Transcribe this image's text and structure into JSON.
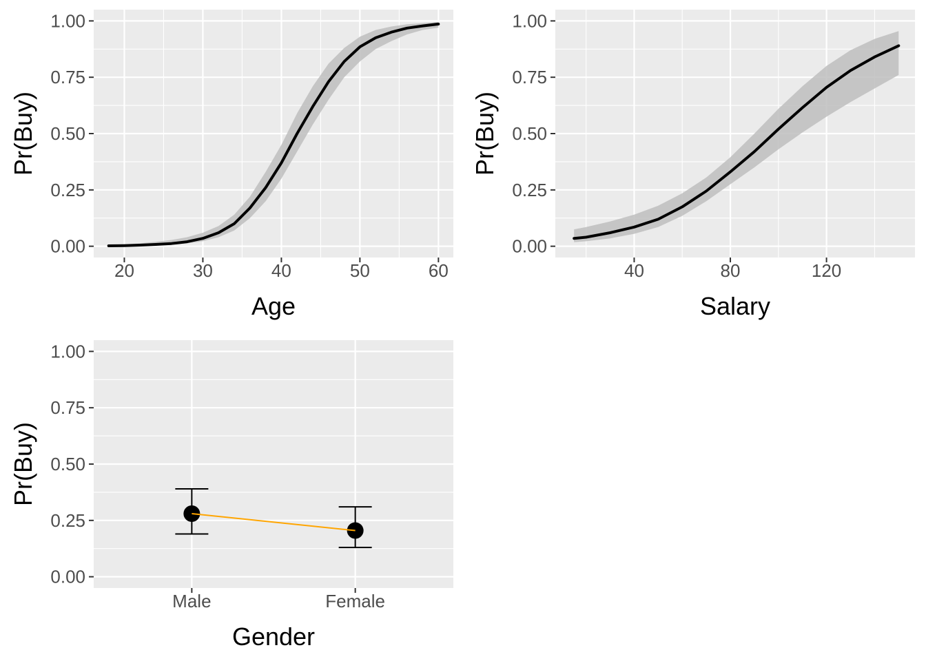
{
  "chart_data": [
    {
      "type": "line",
      "panel": "top-left",
      "xlabel": "Age",
      "ylabel": "Pr(Buy)",
      "xlim": [
        16.1,
        61.9
      ],
      "ylim": [
        -0.05,
        1.05
      ],
      "xticks": [
        20,
        30,
        40,
        50,
        60
      ],
      "xtick_labels": [
        "20",
        "30",
        "40",
        "50",
        "60"
      ],
      "yticks": [
        0,
        0.25,
        0.5,
        0.75,
        1
      ],
      "ytick_labels": [
        "0.00",
        "0.25",
        "0.50",
        "0.75",
        "1.00"
      ],
      "grid": true,
      "x": [
        18,
        20,
        22,
        24,
        26,
        28,
        30,
        32,
        34,
        36,
        38,
        40,
        42,
        44,
        46,
        48,
        50,
        52,
        54,
        56,
        58,
        60
      ],
      "y": [
        0.002,
        0.003,
        0.005,
        0.008,
        0.012,
        0.02,
        0.035,
        0.06,
        0.1,
        0.17,
        0.26,
        0.37,
        0.5,
        0.62,
        0.73,
        0.82,
        0.885,
        0.925,
        0.95,
        0.968,
        0.978,
        0.986
      ],
      "lower": [
        0.0,
        0.001,
        0.002,
        0.004,
        0.007,
        0.013,
        0.022,
        0.04,
        0.07,
        0.125,
        0.2,
        0.3,
        0.42,
        0.54,
        0.65,
        0.75,
        0.82,
        0.875,
        0.91,
        0.94,
        0.96,
        0.97
      ],
      "upper": [
        0.006,
        0.009,
        0.013,
        0.02,
        0.028,
        0.04,
        0.06,
        0.09,
        0.14,
        0.22,
        0.33,
        0.45,
        0.59,
        0.71,
        0.81,
        0.88,
        0.93,
        0.96,
        0.975,
        0.985,
        0.99,
        0.995
      ]
    },
    {
      "type": "line",
      "panel": "top-right",
      "xlabel": "Salary",
      "ylabel": "Pr(Buy)",
      "xlim": [
        7.2,
        156.8
      ],
      "ylim": [
        -0.05,
        1.05
      ],
      "xticks": [
        40,
        80,
        120
      ],
      "xtick_labels": [
        "40",
        "80",
        "120"
      ],
      "yticks": [
        0,
        0.25,
        0.5,
        0.75,
        1
      ],
      "ytick_labels": [
        "0.00",
        "0.25",
        "0.50",
        "0.75",
        "1.00"
      ],
      "grid": true,
      "x": [
        15,
        20,
        30,
        40,
        50,
        60,
        70,
        80,
        90,
        100,
        110,
        120,
        130,
        140,
        150
      ],
      "y": [
        0.035,
        0.04,
        0.06,
        0.085,
        0.12,
        0.175,
        0.245,
        0.33,
        0.42,
        0.52,
        0.615,
        0.705,
        0.78,
        0.84,
        0.89
      ],
      "lower": [
        0.018,
        0.022,
        0.035,
        0.055,
        0.085,
        0.135,
        0.2,
        0.275,
        0.35,
        0.43,
        0.505,
        0.575,
        0.64,
        0.7,
        0.76
      ],
      "upper": [
        0.075,
        0.085,
        0.11,
        0.14,
        0.18,
        0.235,
        0.305,
        0.395,
        0.5,
        0.61,
        0.71,
        0.8,
        0.87,
        0.92,
        0.955
      ]
    },
    {
      "type": "scatter",
      "panel": "bottom-left",
      "xlabel": "Gender",
      "ylabel": "Pr(Buy)",
      "ylim": [
        -0.05,
        1.05
      ],
      "yticks": [
        0,
        0.25,
        0.5,
        0.75,
        1
      ],
      "ytick_labels": [
        "0.00",
        "0.25",
        "0.50",
        "0.75",
        "1.00"
      ],
      "grid": true,
      "categories": [
        "Male",
        "Female"
      ],
      "values": [
        0.28,
        0.205
      ],
      "lower": [
        0.19,
        0.13
      ],
      "upper": [
        0.39,
        0.31
      ],
      "connector_color": "#FFA500"
    }
  ],
  "colors": {
    "panel_background": "#EBEBEB",
    "grid_major": "#FFFFFF",
    "ribbon": "#BEBEBE",
    "line": "#000000",
    "tick_text": "#4D4D4D",
    "connector": "#FFA500"
  }
}
